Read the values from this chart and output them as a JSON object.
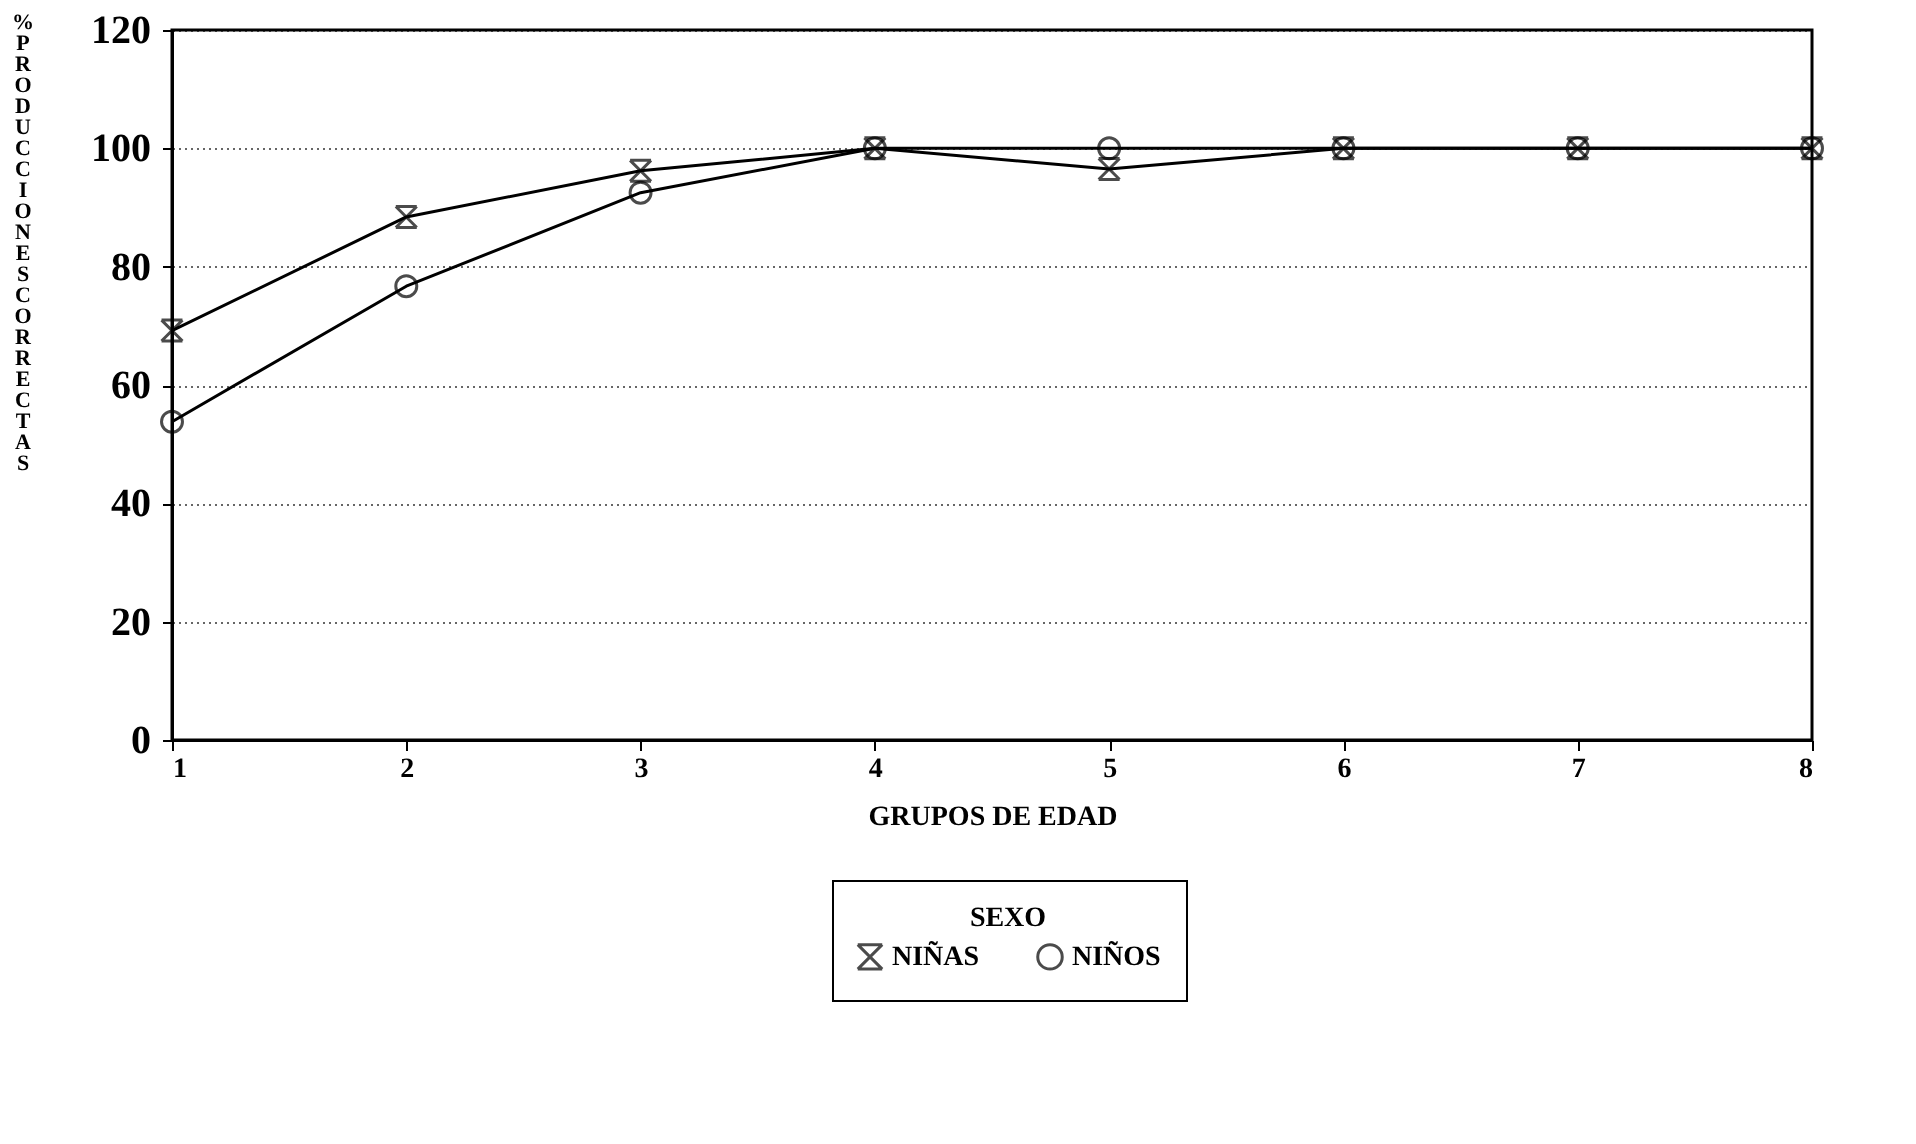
{
  "chart_data": {
    "type": "line",
    "xlabel": "GRUPOS DE EDAD",
    "ylabel": "% PRODUCCIONES  CORRECTAS",
    "legend_title": "SEXO",
    "x": [
      1,
      2,
      3,
      4,
      5,
      6,
      7,
      8
    ],
    "xlim": [
      1,
      8
    ],
    "xticks": [
      1,
      2,
      3,
      4,
      5,
      6,
      7,
      8
    ],
    "ylim": [
      0,
      120
    ],
    "yticks": [
      0,
      20,
      40,
      60,
      80,
      100,
      120
    ],
    "grid": "y",
    "legend": "bottom",
    "line_style": "solid",
    "series": [
      {
        "name": "NIÑAS",
        "color": "#000000",
        "marker": "cross",
        "values": [
          69.2,
          88.4,
          96.2,
          100,
          96.5,
          100,
          100,
          100
        ]
      },
      {
        "name": "NIÑOS",
        "color": "#000000",
        "marker": "circle",
        "values": [
          53.8,
          76.7,
          92.5,
          100,
          100,
          100,
          100,
          100
        ]
      }
    ]
  }
}
